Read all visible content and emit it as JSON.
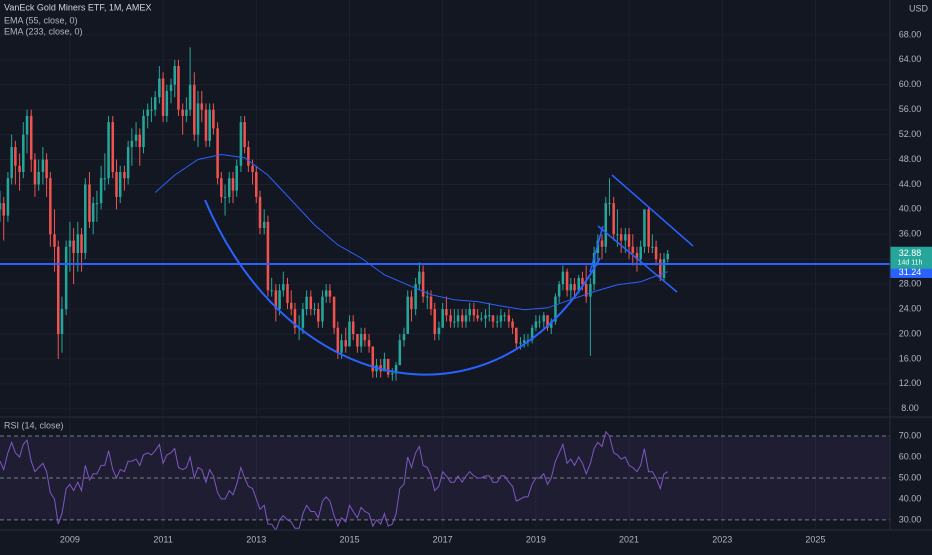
{
  "header": {
    "symbol": "VanEck Gold Miners ETF, 1M, AMEX",
    "currency": "USD"
  },
  "chart_data": {
    "type": "candlestick",
    "up_color": "#26a69a",
    "down_color": "#ef5350",
    "xlim": [
      2007.5,
      2026.6
    ],
    "xticks": [
      2009,
      2011,
      2013,
      2015,
      2017,
      2019,
      2021,
      2023,
      2025
    ],
    "ylim": [
      7,
      73.6
    ],
    "yticks": [
      {
        "value": 8,
        "label": "8.00"
      },
      {
        "value": 12,
        "label": "12.00"
      },
      {
        "value": 16,
        "label": "16.00"
      },
      {
        "value": 20,
        "label": "20.00"
      },
      {
        "value": 24,
        "label": "24.00"
      },
      {
        "value": 28,
        "label": "28.00"
      },
      {
        "value": 32,
        "label": "32.00"
      },
      {
        "value": 36,
        "label": "36.00"
      },
      {
        "value": 40,
        "label": "40.00"
      },
      {
        "value": 44,
        "label": "44.00"
      },
      {
        "value": 48,
        "label": "48.00"
      },
      {
        "value": 52,
        "label": "52.00"
      },
      {
        "value": 56,
        "label": "56.00"
      },
      {
        "value": 60,
        "label": "60.00"
      },
      {
        "value": 64,
        "label": "64.00"
      },
      {
        "value": 68,
        "label": "68.00"
      }
    ],
    "x": [
      2007.5,
      2007.58,
      2007.67,
      2007.75,
      2007.83,
      2007.92,
      2008,
      2008.08,
      2008.17,
      2008.25,
      2008.33,
      2008.42,
      2008.5,
      2008.58,
      2008.67,
      2008.75,
      2008.83,
      2008.92,
      2009,
      2009.08,
      2009.17,
      2009.25,
      2009.33,
      2009.42,
      2009.5,
      2009.58,
      2009.67,
      2009.75,
      2009.83,
      2009.92,
      2010,
      2010.08,
      2010.17,
      2010.25,
      2010.33,
      2010.42,
      2010.5,
      2010.58,
      2010.67,
      2010.75,
      2010.83,
      2010.92,
      2011,
      2011.08,
      2011.17,
      2011.25,
      2011.33,
      2011.42,
      2011.5,
      2011.58,
      2011.67,
      2011.75,
      2011.83,
      2011.92,
      2012,
      2012.08,
      2012.17,
      2012.25,
      2012.33,
      2012.42,
      2012.5,
      2012.58,
      2012.67,
      2012.75,
      2012.83,
      2012.92,
      2013,
      2013.08,
      2013.17,
      2013.25,
      2013.33,
      2013.42,
      2013.5,
      2013.58,
      2013.67,
      2013.75,
      2013.83,
      2013.92,
      2014,
      2014.08,
      2014.17,
      2014.25,
      2014.33,
      2014.42,
      2014.5,
      2014.58,
      2014.67,
      2014.75,
      2014.83,
      2014.92,
      2015,
      2015.08,
      2015.17,
      2015.25,
      2015.33,
      2015.42,
      2015.5,
      2015.58,
      2015.67,
      2015.75,
      2015.83,
      2015.92,
      2016,
      2016.08,
      2016.17,
      2016.25,
      2016.33,
      2016.42,
      2016.5,
      2016.58,
      2016.67,
      2016.75,
      2016.83,
      2016.92,
      2017,
      2017.08,
      2017.17,
      2017.25,
      2017.33,
      2017.42,
      2017.5,
      2017.58,
      2017.67,
      2017.75,
      2017.83,
      2017.92,
      2018,
      2018.08,
      2018.17,
      2018.25,
      2018.33,
      2018.42,
      2018.5,
      2018.58,
      2018.67,
      2018.75,
      2018.83,
      2018.92,
      2019,
      2019.08,
      2019.17,
      2019.25,
      2019.33,
      2019.42,
      2019.5,
      2019.58,
      2019.67,
      2019.75,
      2019.83,
      2019.92,
      2020,
      2020.08,
      2020.17,
      2020.25,
      2020.33,
      2020.42,
      2020.5,
      2020.58,
      2020.67,
      2020.75,
      2020.83,
      2020.92,
      2021,
      2021.08,
      2021.17,
      2021.25,
      2021.33,
      2021.42,
      2021.5,
      2021.58,
      2021.67,
      2021.75,
      2021.83
    ],
    "ohlc": [
      [
        40,
        43,
        38,
        41
      ],
      [
        41,
        42,
        35,
        39
      ],
      [
        39,
        46,
        38,
        45
      ],
      [
        45,
        52,
        44,
        50
      ],
      [
        50,
        51,
        44,
        47
      ],
      [
        47,
        49,
        43,
        46
      ],
      [
        46,
        54,
        45,
        52
      ],
      [
        52,
        56,
        49,
        55
      ],
      [
        55,
        56,
        46,
        48
      ],
      [
        48,
        49,
        42,
        44
      ],
      [
        44,
        48,
        43,
        46
      ],
      [
        46,
        50,
        44,
        48
      ],
      [
        48,
        49,
        42,
        45
      ],
      [
        45,
        46,
        34,
        36
      ],
      [
        36,
        40,
        30,
        34
      ],
      [
        34,
        35,
        16,
        20
      ],
      [
        20,
        26,
        17,
        24
      ],
      [
        24,
        35,
        23,
        34
      ],
      [
        34,
        38,
        30,
        35
      ],
      [
        35,
        37,
        28,
        33
      ],
      [
        33,
        38,
        30,
        36
      ],
      [
        36,
        37,
        30,
        33
      ],
      [
        33,
        45,
        32,
        44
      ],
      [
        44,
        46,
        37,
        38
      ],
      [
        38,
        42,
        36,
        41
      ],
      [
        41,
        43,
        38,
        41
      ],
      [
        41,
        47,
        40,
        45
      ],
      [
        45,
        49,
        43,
        45
      ],
      [
        45,
        55,
        44,
        54
      ],
      [
        54,
        55,
        45,
        46
      ],
      [
        46,
        48,
        40,
        42
      ],
      [
        42,
        47,
        41,
        46
      ],
      [
        46,
        47,
        43,
        45
      ],
      [
        45,
        51,
        44,
        50
      ],
      [
        50,
        53,
        47,
        51
      ],
      [
        51,
        54,
        50,
        52
      ],
      [
        52,
        53,
        47,
        50
      ],
      [
        50,
        56,
        49,
        55
      ],
      [
        55,
        57,
        53,
        56
      ],
      [
        56,
        58,
        54,
        56
      ],
      [
        56,
        59,
        55,
        58
      ],
      [
        58,
        63,
        57,
        61
      ],
      [
        61,
        62,
        54,
        55
      ],
      [
        55,
        60,
        54,
        59
      ],
      [
        59,
        61,
        57,
        60
      ],
      [
        60,
        64,
        58,
        63
      ],
      [
        63,
        64,
        55,
        56
      ],
      [
        56,
        57,
        52,
        55
      ],
      [
        55,
        58,
        54,
        56
      ],
      [
        56,
        66,
        55,
        60
      ],
      [
        60,
        62,
        51,
        52
      ],
      [
        52,
        59,
        50,
        57
      ],
      [
        57,
        59,
        54,
        56
      ],
      [
        56,
        57,
        50,
        51
      ],
      [
        51,
        57,
        50,
        56
      ],
      [
        56,
        57,
        52,
        53
      ],
      [
        53,
        54,
        44,
        45
      ],
      [
        45,
        46,
        41,
        42
      ],
      [
        42,
        44,
        39,
        42
      ],
      [
        42,
        46,
        41,
        45
      ],
      [
        45,
        46,
        41,
        43
      ],
      [
        43,
        48,
        42,
        47
      ],
      [
        47,
        55,
        46,
        54
      ],
      [
        54,
        55,
        49,
        50
      ],
      [
        50,
        51,
        46,
        47
      ],
      [
        47,
        48,
        44,
        46
      ],
      [
        46,
        47,
        41,
        42
      ],
      [
        42,
        43,
        36,
        37
      ],
      [
        37,
        40,
        36,
        38
      ],
      [
        38,
        39,
        26,
        27
      ],
      [
        27,
        29,
        26,
        27
      ],
      [
        27,
        28,
        22,
        24
      ],
      [
        24,
        28,
        23,
        27
      ],
      [
        27,
        30,
        26,
        28
      ],
      [
        28,
        29,
        24,
        25
      ],
      [
        25,
        27,
        23,
        24
      ],
      [
        24,
        25,
        20,
        21
      ],
      [
        21,
        23,
        19,
        21
      ],
      [
        21,
        25,
        20,
        24
      ],
      [
        24,
        27,
        23,
        26
      ],
      [
        26,
        27,
        23,
        24
      ],
      [
        24,
        25,
        23,
        24
      ],
      [
        24,
        25,
        21,
        22
      ],
      [
        22,
        27,
        21,
        26
      ],
      [
        26,
        28,
        25,
        27
      ],
      [
        27,
        28,
        25,
        26
      ],
      [
        26,
        26,
        20,
        21
      ],
      [
        21,
        22,
        16,
        17
      ],
      [
        17,
        20,
        16,
        19
      ],
      [
        19,
        21,
        17,
        18
      ],
      [
        18,
        23,
        18,
        22
      ],
      [
        22,
        23,
        19,
        20
      ],
      [
        20,
        20,
        17,
        18
      ],
      [
        18,
        21,
        17,
        20
      ],
      [
        20,
        21,
        18,
        19
      ],
      [
        19,
        20,
        17,
        18
      ],
      [
        18,
        18,
        13,
        14
      ],
      [
        14,
        16,
        13,
        15
      ],
      [
        15,
        16,
        13,
        14
      ],
      [
        14,
        17,
        14,
        16
      ],
      [
        16,
        16,
        13,
        13.5
      ],
      [
        13.5,
        14.5,
        12.5,
        13.7
      ],
      [
        13.7,
        15.5,
        12.5,
        15
      ],
      [
        15,
        20,
        15,
        19
      ],
      [
        19,
        21,
        18,
        20
      ],
      [
        20,
        27,
        20,
        26
      ],
      [
        26,
        27,
        22,
        24
      ],
      [
        24,
        29,
        23,
        28
      ],
      [
        28,
        31.5,
        27,
        30
      ],
      [
        30,
        31,
        25,
        26
      ],
      [
        26,
        27,
        24,
        26
      ],
      [
        26,
        27,
        23,
        24
      ],
      [
        24,
        25,
        19,
        20
      ],
      [
        20,
        22,
        19,
        21
      ],
      [
        21,
        25,
        21,
        24
      ],
      [
        24,
        26,
        22,
        23
      ],
      [
        23,
        24,
        21,
        22
      ],
      [
        22,
        24,
        21,
        22
      ],
      [
        22,
        24,
        21,
        23
      ],
      [
        23,
        24,
        21,
        22
      ],
      [
        22,
        24,
        21,
        23
      ],
      [
        23,
        25,
        22,
        24
      ],
      [
        24,
        25,
        22,
        23
      ],
      [
        23,
        24,
        22,
        22.5
      ],
      [
        22.5,
        23.5,
        22,
        22.5
      ],
      [
        22.5,
        24,
        21,
        23
      ],
      [
        23,
        25,
        22,
        23
      ],
      [
        23,
        23,
        21,
        22
      ],
      [
        22,
        23,
        21,
        22
      ],
      [
        22,
        24,
        21,
        23
      ],
      [
        23,
        23.5,
        22,
        23
      ],
      [
        23,
        24,
        21,
        22
      ],
      [
        22,
        22.5,
        20,
        21
      ],
      [
        21,
        21,
        17.5,
        18.5
      ],
      [
        18.5,
        19.5,
        17.5,
        18.6
      ],
      [
        18.6,
        20,
        17.8,
        19
      ],
      [
        19,
        20,
        18,
        19
      ],
      [
        19,
        21.5,
        18.5,
        21
      ],
      [
        21,
        23,
        20.5,
        22
      ],
      [
        22,
        23,
        21,
        22
      ],
      [
        22,
        23.5,
        21,
        23
      ],
      [
        23,
        23,
        20.5,
        21
      ],
      [
        21,
        22.5,
        20,
        22
      ],
      [
        22,
        26.5,
        21.5,
        26
      ],
      [
        26,
        28.5,
        25,
        28
      ],
      [
        28,
        31,
        27,
        30
      ],
      [
        30,
        30.5,
        26,
        27
      ],
      [
        27,
        29,
        25.5,
        28
      ],
      [
        28,
        29,
        26,
        27
      ],
      [
        27,
        29.5,
        26.5,
        29
      ],
      [
        29,
        30,
        27,
        28
      ],
      [
        28,
        31,
        25,
        26
      ],
      [
        26,
        29,
        16.5,
        28
      ],
      [
        28,
        34,
        27,
        33
      ],
      [
        33,
        36,
        31,
        35
      ],
      [
        35,
        36,
        32,
        34
      ],
      [
        34,
        42,
        33,
        41
      ],
      [
        41,
        45,
        39,
        41
      ],
      [
        41,
        42,
        35,
        36
      ],
      [
        36,
        40,
        34,
        36
      ],
      [
        36,
        37,
        33,
        35
      ],
      [
        35,
        37,
        33,
        36
      ],
      [
        36,
        37,
        32,
        34
      ],
      [
        34,
        36,
        31,
        33
      ],
      [
        33,
        34,
        30,
        32
      ],
      [
        32,
        35,
        31,
        34
      ],
      [
        34,
        40,
        33,
        40
      ],
      [
        40,
        40.5,
        33,
        34
      ],
      [
        34,
        36,
        33,
        34
      ],
      [
        34,
        35,
        31,
        32
      ],
      [
        32,
        33,
        28.5,
        29
      ],
      [
        29,
        33,
        28.5,
        32
      ],
      [
        32,
        33.5,
        31.5,
        32.88
      ]
    ],
    "indicators": [
      {
        "name": "EMA (55, close, 0)",
        "color": "#2962ff",
        "x": [
          2010.83,
          2011.25,
          2011.75,
          2012.25,
          2012.75,
          2013.25,
          2013.75,
          2014.25,
          2014.75,
          2015.25,
          2015.75,
          2016.25,
          2016.75,
          2017.25,
          2017.75,
          2018.25,
          2018.75,
          2019.25,
          2019.75,
          2020.25,
          2020.75,
          2021.25,
          2021.83
        ],
        "values": [
          42.7,
          45.5,
          48,
          48.8,
          48.3,
          45.5,
          41.5,
          37.5,
          34.3,
          32.2,
          29.5,
          27.9,
          26.3,
          25.5,
          25.2,
          24.5,
          23.9,
          24.2,
          25.5,
          26.8,
          27.9,
          28.4,
          30
        ]
      },
      {
        "name": "EMA (233, close, 0)"
      }
    ],
    "last_price": 32.88,
    "countdown": "14d 11h",
    "horizontal_line": 31.24,
    "rsi": {
      "name": "RSI (14, close)",
      "color": "#7e57c2",
      "ylim": [
        25.2,
        78.6
      ],
      "yticks": [
        {
          "value": 30,
          "label": "30.00"
        },
        {
          "value": 40,
          "label": "40.00"
        },
        {
          "value": 50,
          "label": "50.00"
        },
        {
          "value": 60,
          "label": "60.00"
        },
        {
          "value": 70,
          "label": "70.00"
        }
      ],
      "levels": [
        70,
        50,
        30
      ],
      "values": [
        58,
        54,
        62,
        67,
        62,
        60,
        66,
        68,
        58,
        53,
        55,
        57,
        53,
        43,
        40,
        28,
        33,
        45,
        47,
        44,
        48,
        44,
        56,
        49,
        52,
        52,
        56,
        56,
        63,
        54,
        50,
        54,
        53,
        58,
        58,
        59,
        56,
        61,
        62,
        61,
        63,
        66,
        57,
        61,
        62,
        64,
        55,
        54,
        55,
        60,
        50,
        55,
        54,
        48,
        54,
        51,
        43,
        40,
        40,
        44,
        42,
        47,
        55,
        50,
        46,
        45,
        40,
        35,
        37,
        28,
        28,
        25,
        30,
        32,
        30,
        29,
        26,
        26,
        33,
        37,
        34,
        34,
        31,
        39,
        41,
        39,
        32,
        27,
        31,
        29,
        37,
        34,
        31,
        36,
        34,
        33,
        27,
        30,
        28,
        33,
        27,
        28,
        33,
        45,
        47,
        60,
        55,
        62,
        65,
        56,
        55,
        51,
        44,
        46,
        53,
        51,
        48,
        48,
        51,
        48,
        51,
        53,
        51,
        50,
        50,
        51,
        51,
        48,
        48,
        51,
        51,
        48,
        46,
        39,
        40,
        41,
        41,
        47,
        50,
        50,
        52,
        47,
        50,
        58,
        62,
        66,
        57,
        59,
        56,
        60,
        57,
        52,
        57,
        64,
        67,
        65,
        72,
        70,
        62,
        61,
        59,
        60,
        56,
        55,
        53,
        56,
        64,
        53,
        53,
        50,
        45,
        52,
        53
      ]
    }
  }
}
